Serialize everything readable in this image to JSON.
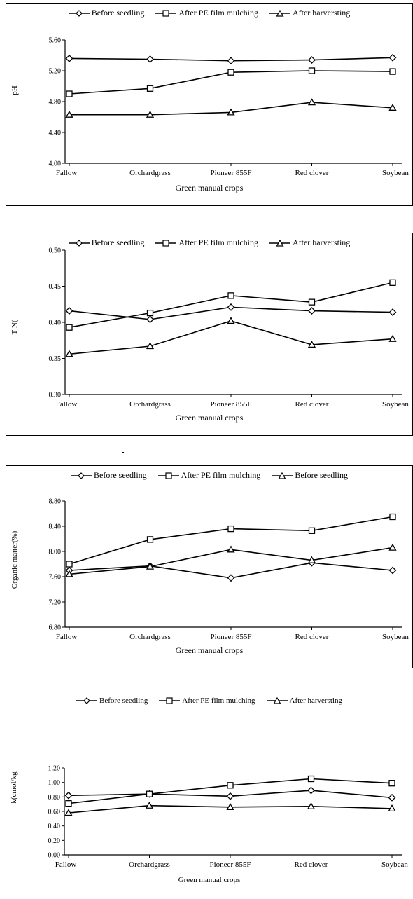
{
  "chart_data": [
    {
      "type": "line",
      "categories": [
        "Fallow",
        "Orchardgrass",
        "Pioneer 855F",
        "Red clover",
        "Soybean"
      ],
      "series": [
        {
          "name": "Before seedling",
          "marker": "diamond",
          "values": [
            5.36,
            5.35,
            5.33,
            5.34,
            5.37
          ]
        },
        {
          "name": "After PE film mulching",
          "marker": "square",
          "values": [
            4.9,
            4.97,
            5.18,
            5.2,
            5.19
          ]
        },
        {
          "name": "After harversting",
          "marker": "triangle",
          "values": [
            4.63,
            4.63,
            4.66,
            4.79,
            4.72
          ]
        }
      ],
      "xlabel": "Green manual crops",
      "ylabel": "pH",
      "ylim": [
        4.0,
        5.6
      ],
      "yticks": [
        "4.00",
        "4.40",
        "4.80",
        "5.20",
        "5.60"
      ],
      "legend": "top"
    },
    {
      "type": "line",
      "categories": [
        "Fallow",
        "Orchardgrass",
        "Pioneer 855F",
        "Red clover",
        "Soybean"
      ],
      "series": [
        {
          "name": "Before seedling",
          "marker": "diamond",
          "values": [
            0.416,
            0.404,
            0.421,
            0.416,
            0.414
          ]
        },
        {
          "name": "After PE film mulching",
          "marker": "square",
          "values": [
            0.393,
            0.413,
            0.437,
            0.428,
            0.455
          ]
        },
        {
          "name": "After harversting",
          "marker": "triangle",
          "values": [
            0.356,
            0.367,
            0.402,
            0.369,
            0.377
          ]
        }
      ],
      "xlabel": "Green manual crops",
      "ylabel": "T-N(",
      "ylim": [
        0.3,
        0.5
      ],
      "yticks": [
        "0.30",
        "0.35",
        "0.40",
        "0.45",
        "0.50"
      ],
      "legend": "top"
    },
    {
      "type": "line",
      "categories": [
        "Fallow",
        "Orchardgrass",
        "Pioneer 855F",
        "Red clover",
        "Soybean"
      ],
      "series": [
        {
          "name": "Before seedling",
          "marker": "diamond",
          "values": [
            7.7,
            7.77,
            7.58,
            7.82,
            7.7
          ]
        },
        {
          "name": "After PE film mulching",
          "marker": "square",
          "values": [
            7.8,
            8.19,
            8.36,
            8.33,
            8.55
          ]
        },
        {
          "name": "Before seedling",
          "marker": "triangle",
          "values": [
            7.64,
            7.76,
            8.03,
            7.86,
            8.06
          ]
        }
      ],
      "xlabel": "Green manual crops",
      "ylabel": "Organic matter(%)",
      "ylim": [
        6.8,
        8.8
      ],
      "yticks": [
        "6.80",
        "7.20",
        "7.60",
        "8.00",
        "8.40",
        "8.80"
      ],
      "legend": "top"
    },
    {
      "type": "line",
      "categories": [
        "Fallow",
        "Orchardgrass",
        "Pioneer 855F",
        "Red clover",
        "Soybean"
      ],
      "series": [
        {
          "name": "Before seedling",
          "marker": "diamond",
          "values": [
            0.82,
            0.84,
            0.81,
            0.89,
            0.79
          ]
        },
        {
          "name": "After PE film mulching",
          "marker": "square",
          "values": [
            0.71,
            0.84,
            0.96,
            1.05,
            0.99
          ]
        },
        {
          "name": "After harversting",
          "marker": "triangle",
          "values": [
            0.58,
            0.68,
            0.66,
            0.67,
            0.64
          ]
        }
      ],
      "xlabel": "Green manual crops",
      "ylabel": "k(cmol/kg",
      "ylim": [
        0.0,
        1.2
      ],
      "yticks": [
        "0.00",
        "0.20",
        "0.40",
        "0.60",
        "0.80",
        "1.00",
        "1.20"
      ],
      "legend": "top"
    }
  ]
}
